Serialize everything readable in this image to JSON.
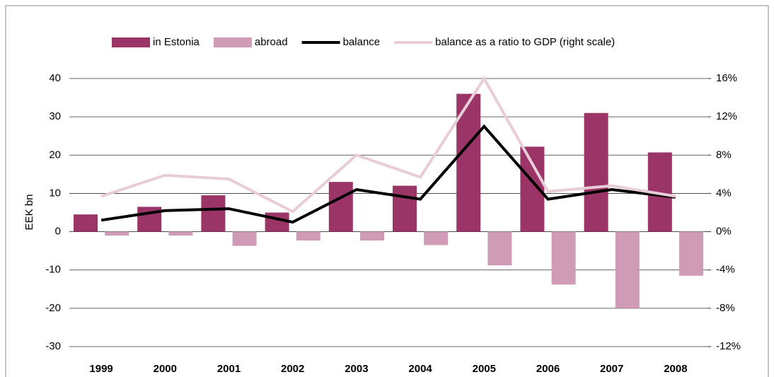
{
  "chart_data": {
    "type": "bar-line",
    "y_label": "EEK bn",
    "categories": [
      "1999",
      "2000",
      "2001",
      "2002",
      "2003",
      "2004",
      "2005",
      "2006",
      "2007",
      "2008"
    ],
    "series": [
      {
        "name": "in Estonia",
        "type": "bar",
        "color": "#9b3467",
        "values": [
          4.5,
          6.5,
          9.5,
          5,
          13,
          12,
          36,
          22.2,
          31,
          20.7
        ]
      },
      {
        "name": "abroad",
        "type": "bar",
        "color": "#cf9bb5",
        "values": [
          -1,
          -1,
          -3.7,
          -2.3,
          -2.3,
          -3.5,
          -8.8,
          -13.8,
          -20,
          -11.5
        ]
      },
      {
        "name": "balance",
        "type": "line",
        "color": "#000000",
        "values": [
          3,
          5.5,
          6,
          2.5,
          11,
          8.5,
          27.5,
          8.5,
          11,
          9
        ]
      },
      {
        "name": "balance as a ratio to GDP (right scale)",
        "type": "line",
        "axis": "y2",
        "color": "#e8cdd8",
        "values": [
          3.7,
          5.9,
          5.5,
          2.1,
          8,
          5.7,
          16,
          4.2,
          4.8,
          3.7
        ]
      }
    ],
    "ylim": [
      -30,
      40
    ],
    "yticks": [
      -30,
      -20,
      -10,
      0,
      10,
      20,
      30,
      40
    ],
    "y2lim": [
      -12,
      16
    ],
    "y2ticks": [
      {
        "value": -12,
        "label": "-12%"
      },
      {
        "value": -8,
        "label": "-8%"
      },
      {
        "value": -4,
        "label": "-4%"
      },
      {
        "value": 0,
        "label": "0%"
      },
      {
        "value": 4,
        "label": "4%"
      },
      {
        "value": 8,
        "label": "8%"
      },
      {
        "value": 12,
        "label": "12%"
      },
      {
        "value": 16,
        "label": "16%"
      }
    ],
    "grid": true
  }
}
